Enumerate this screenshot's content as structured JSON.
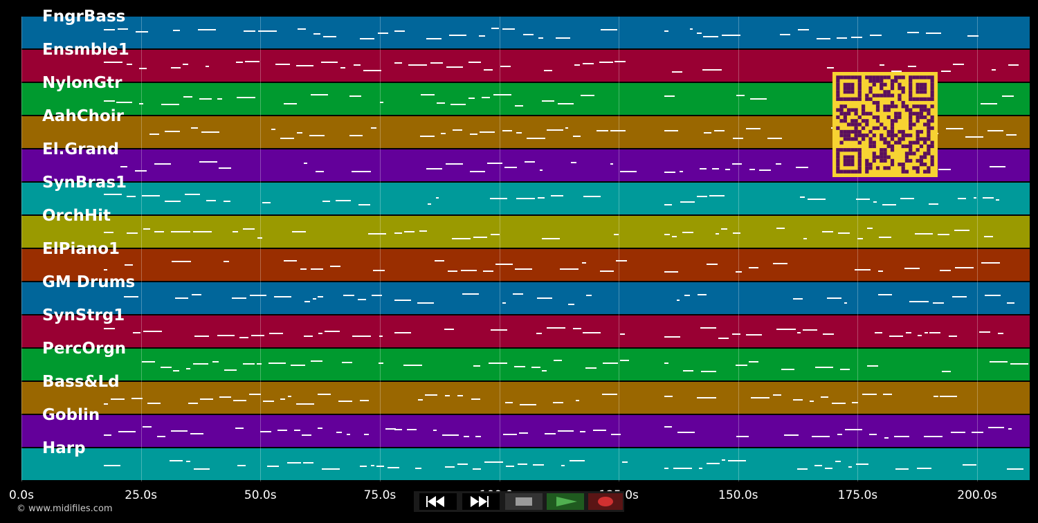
{
  "tracks": [
    {
      "name": "FngrBass",
      "color": "#01669a"
    },
    {
      "name": "Ensmble1",
      "color": "#990033"
    },
    {
      "name": "NylonGtr",
      "color": "#009a2f"
    },
    {
      "name": "AahChoir",
      "color": "#9a6700"
    },
    {
      "name": "El.Grand",
      "color": "#63009a"
    },
    {
      "name": "SynBras1",
      "color": "#009a9a"
    },
    {
      "name": "OrchHit",
      "color": "#9a9a00"
    },
    {
      "name": "ElPiano1",
      "color": "#9a2e00"
    },
    {
      "name": "GM Drums",
      "color": "#01669a"
    },
    {
      "name": "SynStrg1",
      "color": "#990033"
    },
    {
      "name": "PercOrgn",
      "color": "#009a2f"
    },
    {
      "name": "Bass&Ld",
      "color": "#9a6700"
    },
    {
      "name": "Goblin",
      "color": "#63009a"
    },
    {
      "name": "Harp",
      "color": "#009a9a"
    }
  ],
  "timeline": {
    "ticks": [
      "0.0s",
      "25.0s",
      "50.0s",
      "75.0s",
      "100.0s",
      "125.0s",
      "150.0s",
      "175.0s",
      "200.0s"
    ],
    "tick_seconds": [
      0,
      25,
      50,
      75,
      100,
      125,
      150,
      175,
      200
    ],
    "max_seconds": 211
  },
  "transport": {
    "rewind_icon": "rewind-icon",
    "fast_forward_icon": "fast-forward-icon",
    "stop_icon": "stop-icon",
    "play_icon": "play-icon",
    "record_icon": "record-icon",
    "colors": {
      "stop": "#9a9a9a",
      "play": "#50b050",
      "record": "#d03030"
    }
  },
  "footer": {
    "copyright": "© www.midifiles.com"
  },
  "qr_icon": "qr-code-icon"
}
